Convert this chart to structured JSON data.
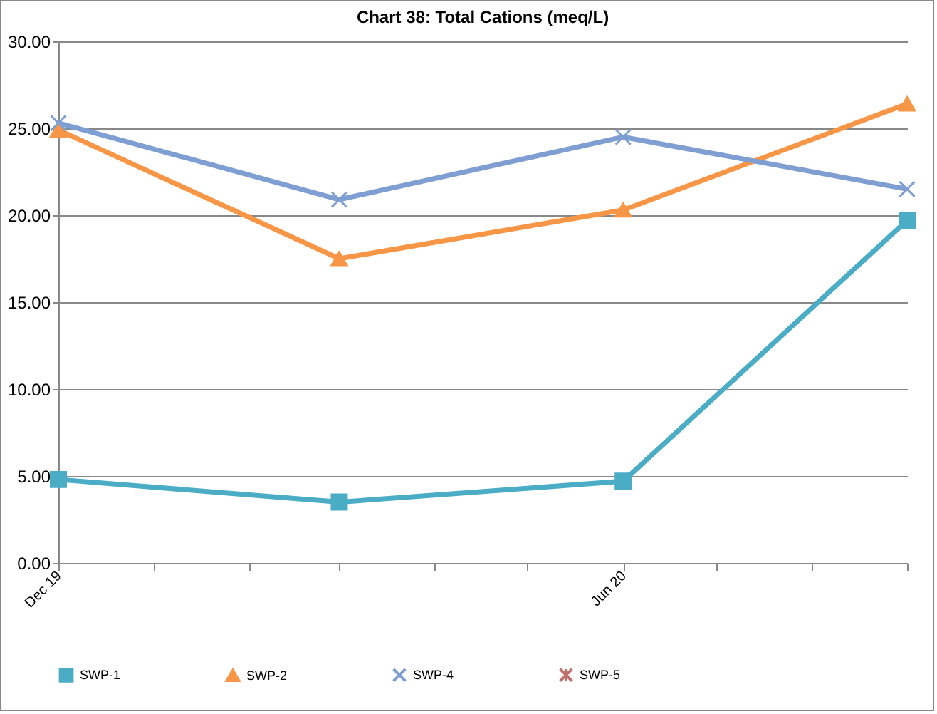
{
  "chart_data": {
    "type": "line",
    "title": "Chart 38: Total Cations (meq/L)",
    "x": [
      "2019-12",
      "2020-03",
      "2020-06",
      "2020-09"
    ],
    "xlim": [
      "2019-12",
      "2020-09"
    ],
    "xticks": [
      {
        "value": "2019-12",
        "label": "Dec 19"
      },
      {
        "value": "2020-01",
        "label": null
      },
      {
        "value": "2020-02",
        "label": null
      },
      {
        "value": "2020-03",
        "label": null
      },
      {
        "value": "2020-04",
        "label": null
      },
      {
        "value": "2020-05",
        "label": null
      },
      {
        "value": "2020-06",
        "label": "Jun 20"
      },
      {
        "value": "2020-07",
        "label": null
      },
      {
        "value": "2020-08",
        "label": null
      },
      {
        "value": "2020-09",
        "label": null
      }
    ],
    "ylim": [
      0,
      30
    ],
    "yticks": [
      {
        "value": 0,
        "label": "0.00"
      },
      {
        "value": 5,
        "label": "5.00"
      },
      {
        "value": 10,
        "label": "10.00"
      },
      {
        "value": 15,
        "label": "15.00"
      },
      {
        "value": 20,
        "label": "20.00"
      },
      {
        "value": 25,
        "label": "25.00"
      },
      {
        "value": 30,
        "label": "30.00"
      }
    ],
    "series": [
      {
        "name": "SWP-1",
        "color": "#4bacc6",
        "marker": "square",
        "values": [
          4.8,
          3.5,
          4.7,
          19.7
        ]
      },
      {
        "name": "SWP-2",
        "color": "#f79646",
        "marker": "triangle",
        "values": [
          24.9,
          17.5,
          20.3,
          26.4
        ]
      },
      {
        "name": "SWP-4",
        "color": "#7f9fd3",
        "marker": "cross",
        "values": [
          25.3,
          20.9,
          24.5,
          21.5
        ]
      },
      {
        "name": "SWP-5",
        "color": "#c0706c",
        "marker": "star",
        "values": [
          null,
          null,
          null,
          null
        ]
      }
    ],
    "grid": "y",
    "legend": "bottom"
  }
}
